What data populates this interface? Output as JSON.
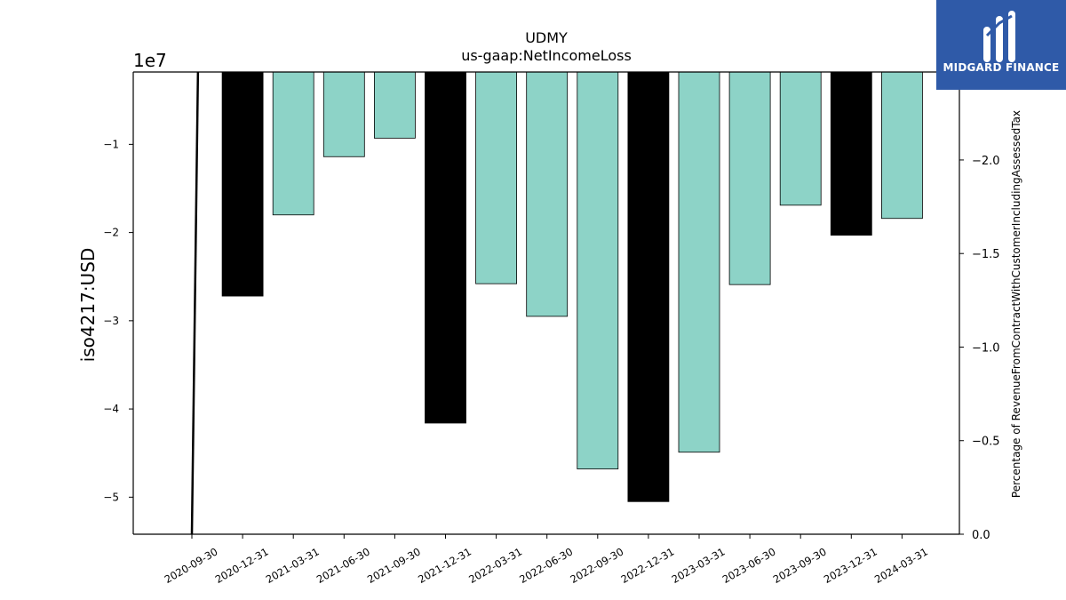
{
  "chart_data": {
    "type": "bar",
    "title": "UDMY",
    "subtitle": "us-gaap:NetIncomeLoss",
    "ylabel": "iso4217:USD",
    "y_offset_label": "1e7",
    "y2label": "Percentage of RevenueFromContractWithCustomerIncludingAssessedTax",
    "categories": [
      "2020-09-30",
      "2020-12-31",
      "2021-03-31",
      "2021-06-30",
      "2021-09-30",
      "2021-12-31",
      "2022-03-31",
      "2022-06-30",
      "2022-09-30",
      "2022-12-31",
      "2023-03-31",
      "2023-06-30",
      "2023-09-30",
      "2023-12-31",
      "2024-03-31"
    ],
    "values": [
      null,
      -27200000,
      -18000000,
      -11400000,
      -9300000,
      -41600000,
      -25800000,
      -29500000,
      -46800000,
      -50500000,
      -44900000,
      -25900000,
      -16900000,
      -20300000,
      -18400000
    ],
    "annual_flags": [
      false,
      true,
      false,
      false,
      false,
      true,
      false,
      false,
      false,
      true,
      false,
      false,
      false,
      true,
      false
    ],
    "ylim": [
      -54200000,
      -1800000
    ],
    "yticks": [
      -50000000,
      -40000000,
      -30000000,
      -20000000,
      -10000000
    ],
    "ytick_labels": [
      "−5",
      "−4",
      "−3",
      "−2",
      "−1"
    ],
    "y2lim": [
      0.0,
      2.47
    ],
    "y2ticks": [
      0.0,
      0.5,
      1.0,
      1.5,
      2.0
    ],
    "y2tick_labels": [
      "0.0",
      "−0.5",
      "−1.0",
      "−1.5",
      "−2.0"
    ],
    "line_series": {
      "x_index": [
        0,
        0.12
      ],
      "y2": [
        0.0,
        2.47
      ]
    },
    "colors": {
      "annual": "#000000",
      "quarterly": "#8dd3c7",
      "line": "#000000"
    }
  },
  "logo": {
    "text": "MIDGARD FINANCE"
  }
}
